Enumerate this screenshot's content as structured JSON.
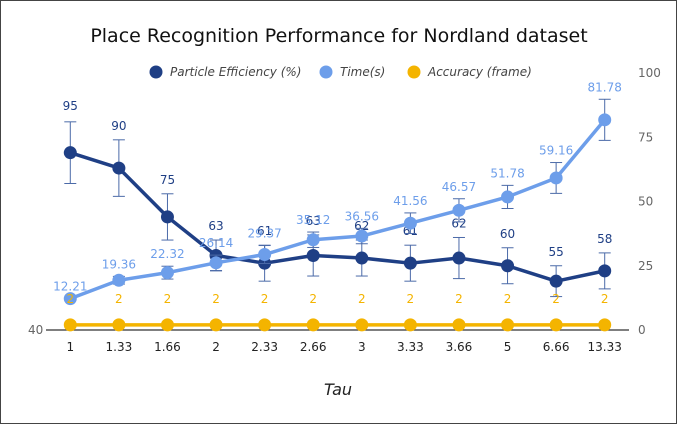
{
  "chart_data": {
    "type": "line",
    "title": "Place Recognition Performance for Nordland dataset",
    "xlabel": "Tau",
    "categories": [
      "1",
      "1.33",
      "1.66",
      "2",
      "2.33",
      "2.66",
      "3",
      "3.33",
      "3.66",
      "5",
      "6.66",
      "13.33"
    ],
    "y_right_ticks": [
      "100",
      "75",
      "50",
      "25",
      "0"
    ],
    "y_left_min_label": "40",
    "ylim": [
      0,
      100
    ],
    "grid": false,
    "legend_position": "top",
    "series": [
      {
        "name": "Particle Efficiency (%)",
        "color": "#1f3f85",
        "labels": [
          "95",
          "90",
          "75",
          "63",
          "61",
          "63",
          "62",
          "61",
          "62",
          "60",
          "55",
          "58"
        ],
        "values": [
          69,
          63,
          44,
          29,
          26,
          29,
          28,
          26,
          28,
          25,
          19,
          23
        ],
        "err": [
          12,
          11,
          9,
          6,
          7,
          8,
          7,
          7,
          8,
          7,
          6,
          7
        ]
      },
      {
        "name": "Time(s)",
        "color": "#6d9eea",
        "labels": [
          "12.21",
          "19.36",
          "22.32",
          "26.14",
          "29.37",
          "35.12",
          "36.56",
          "41.56",
          "46.57",
          "51.78",
          "59.16",
          "81.78"
        ],
        "values": [
          12.21,
          19.36,
          22.32,
          26.14,
          29.37,
          35.12,
          36.56,
          41.56,
          46.57,
          51.78,
          59.16,
          81.78
        ],
        "err": [
          0,
          1.5,
          2.5,
          3,
          3.5,
          3,
          3,
          4,
          4.5,
          4.5,
          6,
          8
        ]
      },
      {
        "name": "Accuracy (frame)",
        "color": "#f4b400",
        "labels": [
          "2",
          "2",
          "2",
          "2",
          "2",
          "2",
          "2",
          "2",
          "2",
          "2",
          "2",
          "2"
        ],
        "values": [
          2,
          2,
          2,
          2,
          2,
          2,
          2,
          2,
          2,
          2,
          2,
          2
        ],
        "err": [
          0,
          0,
          0,
          0,
          0,
          0,
          0,
          0,
          0,
          0,
          0,
          0
        ]
      }
    ]
  }
}
